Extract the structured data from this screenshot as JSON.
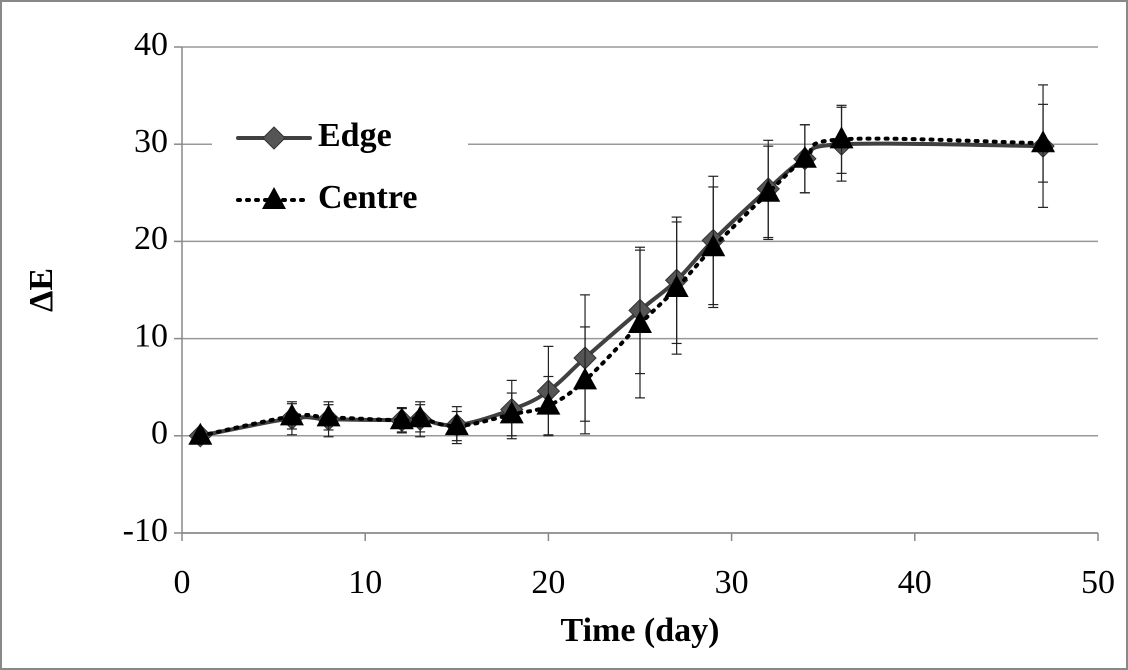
{
  "chart_data": {
    "type": "line",
    "x_label": "Time (day)",
    "y_label": "ΔE",
    "xlim": [
      0,
      50
    ],
    "xticks": [
      0,
      10,
      20,
      30,
      40,
      50
    ],
    "ylim": [
      -10,
      40
    ],
    "yticks": [
      -10,
      0,
      10,
      20,
      30,
      40
    ],
    "grid": true,
    "legend": "upper left",
    "x": [
      1,
      6,
      8,
      12,
      13,
      15,
      18,
      20,
      22,
      25,
      27,
      29,
      32,
      34,
      36,
      47
    ],
    "series": [
      {
        "name": "Edge",
        "color": "#404040",
        "marker": "diamond",
        "line": "solid",
        "values": [
          0,
          1.8,
          1.7,
          1.6,
          1.7,
          1.1,
          2.7,
          4.6,
          8,
          12.9,
          16,
          20.1,
          25.4,
          28.5,
          30,
          29.8
        ],
        "errors": [
          0,
          1.7,
          1.8,
          1.3,
          1.8,
          1.9,
          3,
          4.6,
          6.5,
          6.5,
          6.5,
          6.6,
          5,
          3.5,
          3.8,
          6.3
        ]
      },
      {
        "name": "Centre",
        "color": "#000000",
        "marker": "triangle",
        "line": "dotted",
        "values": [
          0,
          2,
          1.9,
          1.6,
          1.8,
          1,
          2.2,
          3.1,
          5.7,
          11.5,
          15.2,
          19.4,
          25,
          28.5,
          30.5,
          30.1
        ],
        "errors": [
          0,
          1.3,
          1.3,
          1.2,
          1.4,
          1.5,
          2.2,
          3,
          5.5,
          7.6,
          6.8,
          6.2,
          4.8,
          3.5,
          3.5,
          4
        ]
      }
    ]
  }
}
